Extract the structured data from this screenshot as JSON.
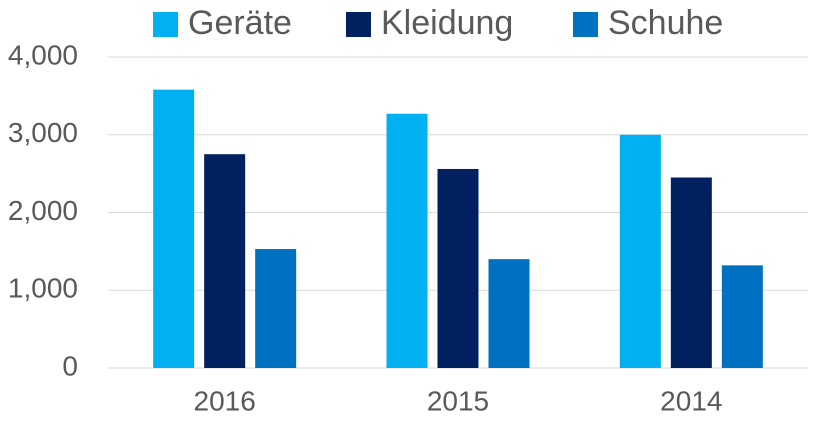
{
  "chart_data": {
    "type": "bar",
    "categories": [
      "2016",
      "2015",
      "2014"
    ],
    "series": [
      {
        "name": "Geräte",
        "color": "#00b0f0",
        "values": [
          3580,
          3270,
          3000
        ]
      },
      {
        "name": "Kleidung",
        "color": "#002060",
        "values": [
          2750,
          2560,
          2450
        ]
      },
      {
        "name": "Schuhe",
        "color": "#0070c0",
        "values": [
          1530,
          1400,
          1320
        ]
      }
    ],
    "ylim": [
      0,
      4000
    ],
    "yticks": [
      0,
      {
        "value": 1000,
        "label": "1,000"
      },
      {
        "value": 2000,
        "label": "2,000"
      },
      {
        "value": 3000,
        "label": "3,000"
      },
      {
        "value": 4000,
        "label": "4,000"
      }
    ],
    "grid": true,
    "legend": "top"
  }
}
